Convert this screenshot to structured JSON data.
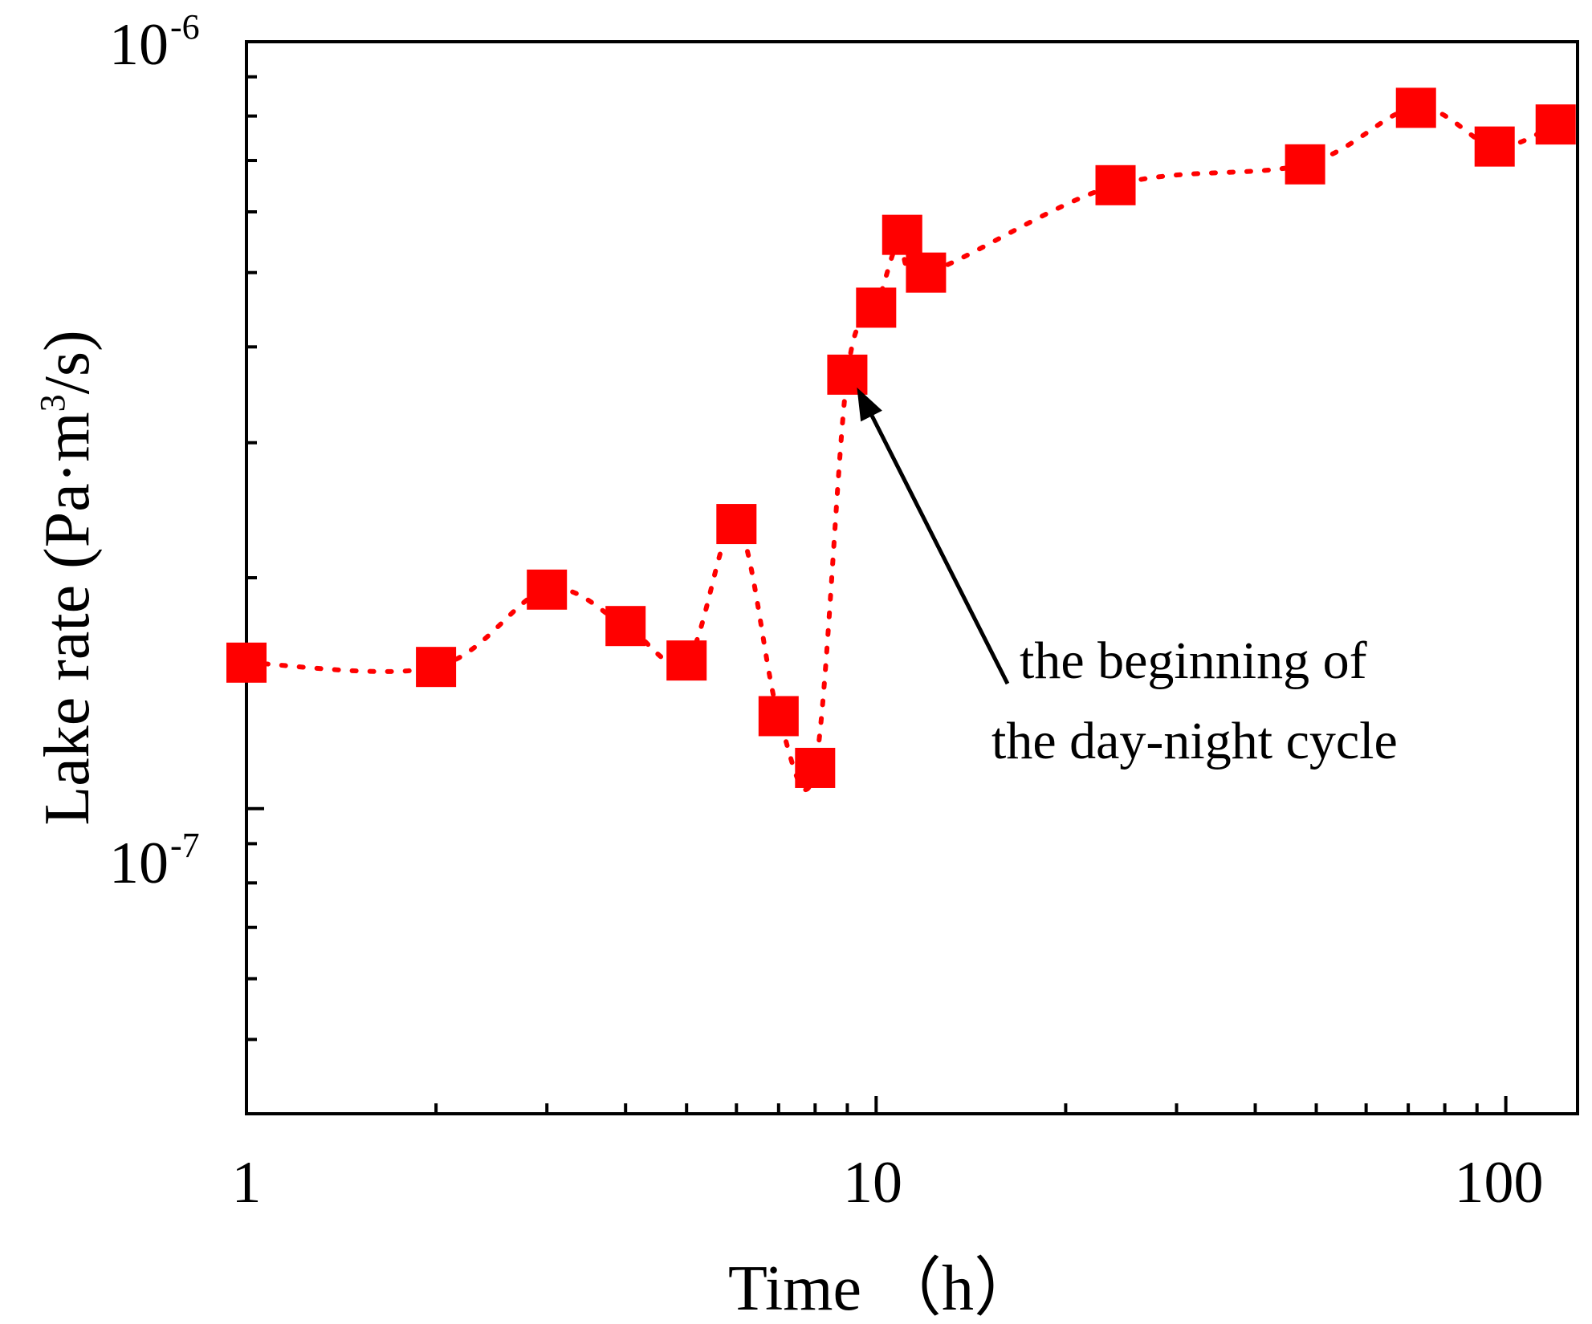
{
  "chart_data": {
    "type": "scatter",
    "xscale": "log",
    "yscale": "log",
    "xlim": [
      1,
      130
    ],
    "ylim": [
      4e-08,
      1e-06
    ],
    "xlabel": "Time （h）",
    "ylabel": {
      "prefix": "Lake rate (Pa·m",
      "sup": "3",
      "suffix": "/s)"
    },
    "x_ticks": [
      {
        "value": 1,
        "label": "1"
      },
      {
        "value": 10,
        "label": "10"
      },
      {
        "value": 100,
        "label": "100"
      }
    ],
    "y_ticks": [
      {
        "value": 1e-07,
        "base": "10",
        "exp": "-7"
      },
      {
        "value": 1e-06,
        "base": "10",
        "exp": "-6"
      }
    ],
    "series": [
      {
        "name": "Lake rate",
        "color": "#ff0000",
        "marker": "square",
        "line": "dotted",
        "x": [
          1,
          2,
          3,
          4,
          5,
          6,
          7,
          8,
          9,
          10,
          11,
          12,
          24,
          48,
          72,
          96,
          120
        ],
        "y": [
          1.55e-07,
          1.53e-07,
          1.93e-07,
          1.73e-07,
          1.56e-07,
          2.35e-07,
          1.32e-07,
          1.13e-07,
          3.68e-07,
          4.5e-07,
          5.6e-07,
          5e-07,
          6.5e-07,
          6.92e-07,
          8.2e-07,
          7.3e-07,
          7.8e-07
        ]
      }
    ],
    "annotation": {
      "lines": [
        "the beginning of",
        "the day-night cycle"
      ],
      "target": {
        "x": 9,
        "y": 3.68e-07
      }
    }
  }
}
